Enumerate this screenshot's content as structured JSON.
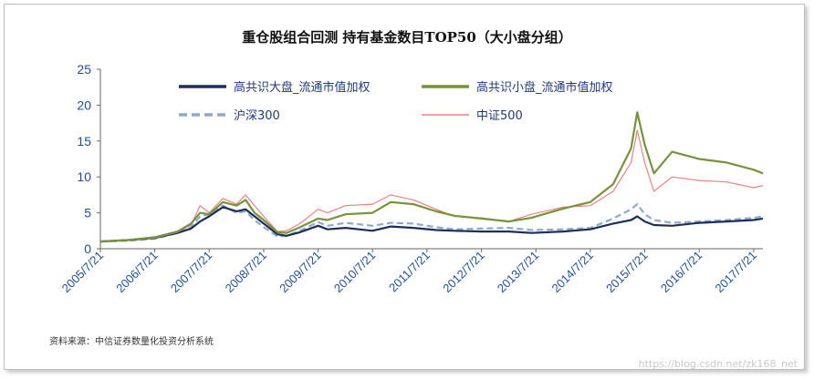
{
  "chart_data": {
    "type": "line",
    "title": "重仓股组合回测  持有基金数目TOP50（大小盘分组）",
    "source": "资料来源：中信证券数量化投资分析系统",
    "watermark": "https://blog.csdn.net/zk168_net",
    "ylim": [
      0,
      25
    ],
    "yticks": [
      0,
      5,
      10,
      15,
      20,
      25
    ],
    "xlim": [
      "2005-07-21",
      "2017-09-21"
    ],
    "xticks": [
      "2005/7/21",
      "2006/7/21",
      "2007/7/21",
      "2008/7/21",
      "2009/7/21",
      "2010/7/21",
      "2011/7/21",
      "2012/7/21",
      "2013/7/21",
      "2014/7/21",
      "2015/7/21",
      "2016/7/21",
      "2017/7/21"
    ],
    "grid": false,
    "legend_position": "top",
    "series": [
      {
        "name": "高共识大盘_流通市值加权",
        "color": "#1f2d5a",
        "style": "solid-thick",
        "points": [
          [
            "2005-07-21",
            1.0
          ],
          [
            "2006-01-21",
            1.2
          ],
          [
            "2006-07-21",
            1.5
          ],
          [
            "2006-12-21",
            2.2
          ],
          [
            "2007-03-21",
            2.8
          ],
          [
            "2007-05-21",
            3.8
          ],
          [
            "2007-07-21",
            4.5
          ],
          [
            "2007-10-21",
            5.8
          ],
          [
            "2008-01-21",
            5.2
          ],
          [
            "2008-03-21",
            5.5
          ],
          [
            "2008-05-21",
            4.5
          ],
          [
            "2008-07-21",
            3.5
          ],
          [
            "2008-10-21",
            2.0
          ],
          [
            "2008-12-21",
            1.8
          ],
          [
            "2009-03-21",
            2.3
          ],
          [
            "2009-07-21",
            3.2
          ],
          [
            "2009-09-21",
            2.7
          ],
          [
            "2010-01-21",
            2.9
          ],
          [
            "2010-07-21",
            2.5
          ],
          [
            "2010-11-21",
            3.1
          ],
          [
            "2011-04-21",
            2.9
          ],
          [
            "2011-09-21",
            2.6
          ],
          [
            "2012-01-21",
            2.5
          ],
          [
            "2012-07-21",
            2.4
          ],
          [
            "2013-01-21",
            2.4
          ],
          [
            "2013-06-21",
            2.2
          ],
          [
            "2014-01-21",
            2.4
          ],
          [
            "2014-07-21",
            2.7
          ],
          [
            "2014-12-21",
            3.5
          ],
          [
            "2015-04-21",
            4.0
          ],
          [
            "2015-06-01",
            4.5
          ],
          [
            "2015-07-21",
            3.8
          ],
          [
            "2015-09-21",
            3.3
          ],
          [
            "2016-01-21",
            3.2
          ],
          [
            "2016-07-21",
            3.6
          ],
          [
            "2017-01-21",
            3.8
          ],
          [
            "2017-07-21",
            4.0
          ],
          [
            "2017-09-21",
            4.2
          ]
        ]
      },
      {
        "name": "高共识小盘_流通市值加权",
        "color": "#76933c",
        "style": "solid-thick",
        "points": [
          [
            "2005-07-21",
            1.0
          ],
          [
            "2006-01-21",
            1.2
          ],
          [
            "2006-07-21",
            1.6
          ],
          [
            "2006-12-21",
            2.4
          ],
          [
            "2007-03-21",
            3.5
          ],
          [
            "2007-05-21",
            5.0
          ],
          [
            "2007-07-21",
            4.8
          ],
          [
            "2007-10-21",
            6.5
          ],
          [
            "2008-01-21",
            6.0
          ],
          [
            "2008-03-21",
            6.8
          ],
          [
            "2008-05-21",
            5.0
          ],
          [
            "2008-07-21",
            4.0
          ],
          [
            "2008-10-21",
            2.3
          ],
          [
            "2008-12-21",
            2.2
          ],
          [
            "2009-03-21",
            3.0
          ],
          [
            "2009-07-21",
            4.2
          ],
          [
            "2009-09-21",
            4.0
          ],
          [
            "2010-01-21",
            4.8
          ],
          [
            "2010-07-21",
            5.0
          ],
          [
            "2010-11-21",
            6.5
          ],
          [
            "2011-04-21",
            6.2
          ],
          [
            "2011-09-21",
            5.2
          ],
          [
            "2012-01-21",
            4.6
          ],
          [
            "2012-07-21",
            4.2
          ],
          [
            "2013-01-21",
            3.8
          ],
          [
            "2013-06-21",
            4.3
          ],
          [
            "2014-01-21",
            5.6
          ],
          [
            "2014-07-21",
            6.5
          ],
          [
            "2014-12-21",
            9.0
          ],
          [
            "2015-04-21",
            14.0
          ],
          [
            "2015-06-01",
            19.0
          ],
          [
            "2015-07-21",
            14.5
          ],
          [
            "2015-09-21",
            10.5
          ],
          [
            "2016-01-21",
            13.5
          ],
          [
            "2016-07-21",
            12.5
          ],
          [
            "2017-01-21",
            12.0
          ],
          [
            "2017-07-21",
            11.0
          ],
          [
            "2017-09-21",
            10.5
          ]
        ]
      },
      {
        "name": "沪深300",
        "color": "#8ea9cc",
        "style": "dashed-thick",
        "points": [
          [
            "2005-07-21",
            1.0
          ],
          [
            "2006-01-21",
            1.1
          ],
          [
            "2006-07-21",
            1.4
          ],
          [
            "2006-12-21",
            2.2
          ],
          [
            "2007-03-21",
            3.0
          ],
          [
            "2007-05-21",
            4.5
          ],
          [
            "2007-07-21",
            4.8
          ],
          [
            "2007-10-21",
            6.0
          ],
          [
            "2008-01-21",
            5.0
          ],
          [
            "2008-03-21",
            5.2
          ],
          [
            "2008-05-21",
            4.0
          ],
          [
            "2008-07-21",
            3.0
          ],
          [
            "2008-10-21",
            1.7
          ],
          [
            "2008-12-21",
            1.8
          ],
          [
            "2009-03-21",
            2.5
          ],
          [
            "2009-07-21",
            3.7
          ],
          [
            "2009-09-21",
            3.2
          ],
          [
            "2010-01-21",
            3.6
          ],
          [
            "2010-07-21",
            3.2
          ],
          [
            "2010-11-21",
            3.6
          ],
          [
            "2011-04-21",
            3.5
          ],
          [
            "2011-09-21",
            3.0
          ],
          [
            "2012-01-21",
            2.7
          ],
          [
            "2012-07-21",
            2.8
          ],
          [
            "2013-01-21",
            2.9
          ],
          [
            "2013-06-21",
            2.6
          ],
          [
            "2014-01-21",
            2.7
          ],
          [
            "2014-07-21",
            2.9
          ],
          [
            "2014-12-21",
            4.2
          ],
          [
            "2015-04-21",
            5.5
          ],
          [
            "2015-06-01",
            6.2
          ],
          [
            "2015-07-21",
            4.8
          ],
          [
            "2015-09-21",
            4.0
          ],
          [
            "2016-01-21",
            3.6
          ],
          [
            "2016-07-21",
            3.8
          ],
          [
            "2017-01-21",
            4.0
          ],
          [
            "2017-07-21",
            4.3
          ],
          [
            "2017-09-21",
            4.5
          ]
        ]
      },
      {
        "name": "中证500",
        "color": "#f08080",
        "style": "solid-thin",
        "points": [
          [
            "2005-07-21",
            1.0
          ],
          [
            "2006-01-21",
            1.2
          ],
          [
            "2006-07-21",
            1.5
          ],
          [
            "2006-12-21",
            2.3
          ],
          [
            "2007-03-21",
            3.3
          ],
          [
            "2007-05-21",
            6.0
          ],
          [
            "2007-07-21",
            5.0
          ],
          [
            "2007-10-21",
            7.0
          ],
          [
            "2008-01-21",
            6.2
          ],
          [
            "2008-03-21",
            7.5
          ],
          [
            "2008-05-21",
            6.0
          ],
          [
            "2008-07-21",
            4.5
          ],
          [
            "2008-10-21",
            2.4
          ],
          [
            "2008-12-21",
            2.5
          ],
          [
            "2009-03-21",
            3.5
          ],
          [
            "2009-07-21",
            5.5
          ],
          [
            "2009-09-21",
            5.0
          ],
          [
            "2010-01-21",
            6.0
          ],
          [
            "2010-07-21",
            6.2
          ],
          [
            "2010-11-21",
            7.5
          ],
          [
            "2011-04-21",
            6.8
          ],
          [
            "2011-09-21",
            5.5
          ],
          [
            "2012-01-21",
            4.5
          ],
          [
            "2012-07-21",
            4.3
          ],
          [
            "2013-01-21",
            3.8
          ],
          [
            "2013-06-21",
            4.8
          ],
          [
            "2014-01-21",
            5.8
          ],
          [
            "2014-07-21",
            6.0
          ],
          [
            "2014-12-21",
            8.0
          ],
          [
            "2015-04-21",
            12.0
          ],
          [
            "2015-06-01",
            16.5
          ],
          [
            "2015-07-21",
            12.0
          ],
          [
            "2015-09-21",
            8.0
          ],
          [
            "2016-01-21",
            10.0
          ],
          [
            "2016-07-21",
            9.5
          ],
          [
            "2017-01-21",
            9.3
          ],
          [
            "2017-07-21",
            8.5
          ],
          [
            "2017-09-21",
            8.8
          ]
        ]
      }
    ]
  }
}
